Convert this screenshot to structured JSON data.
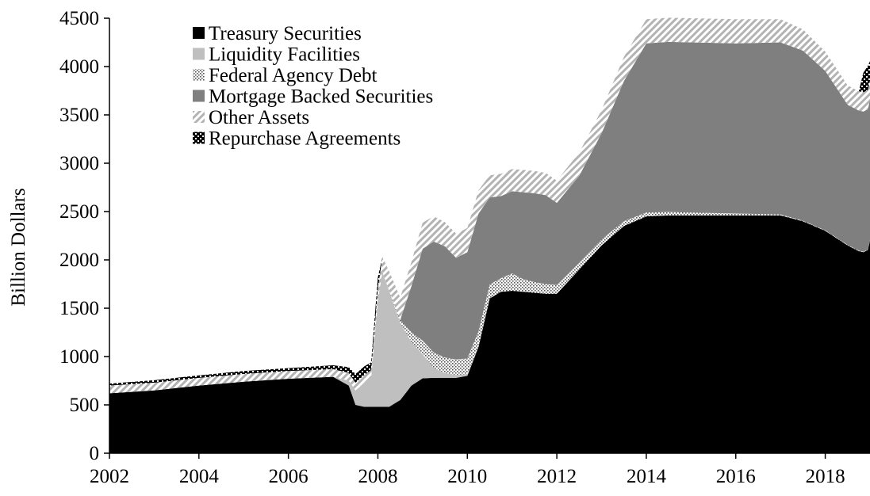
{
  "chart_data": {
    "type": "area",
    "stacked": true,
    "title": "",
    "xlabel": "",
    "ylabel": "Billion Dollars",
    "xlim": [
      2002,
      2019
    ],
    "ylim": [
      0,
      4500
    ],
    "x_ticks": [
      2002,
      2004,
      2006,
      2008,
      2010,
      2012,
      2014,
      2016,
      2018
    ],
    "y_ticks": [
      0,
      500,
      1000,
      1500,
      2000,
      2500,
      3000,
      3500,
      4000,
      4500
    ],
    "grid": false,
    "legend_position": "top-left",
    "x": [
      2002.0,
      2003.0,
      2004.0,
      2005.0,
      2006.0,
      2007.0,
      2007.35,
      2007.5,
      2007.7,
      2007.85,
      2008.0,
      2008.1,
      2008.25,
      2008.5,
      2008.75,
      2009.0,
      2009.25,
      2009.5,
      2009.75,
      2010.0,
      2010.25,
      2010.5,
      2010.75,
      2011.0,
      2011.25,
      2011.5,
      2011.75,
      2012.0,
      2012.5,
      2013.0,
      2013.5,
      2014.0,
      2014.5,
      2015.0,
      2016.0,
      2017.0,
      2017.5,
      2018.0,
      2018.5,
      2018.75,
      2018.85,
      2018.95,
      2019.0
    ],
    "series": [
      {
        "name": "Treasury Securities",
        "pattern": "solid-black",
        "color": "#000000",
        "values": [
          620,
          650,
          700,
          740,
          770,
          790,
          700,
          500,
          480,
          480,
          480,
          480,
          480,
          550,
          700,
          775,
          780,
          780,
          780,
          800,
          1100,
          1600,
          1670,
          1680,
          1670,
          1660,
          1650,
          1650,
          1900,
          2150,
          2350,
          2450,
          2460,
          2460,
          2460,
          2460,
          2400,
          2300,
          2150,
          2090,
          2080,
          2100,
          2200
        ]
      },
      {
        "name": "Liquidity Facilities",
        "pattern": "solid-light-gray",
        "color": "#bfbfbf",
        "values": [
          0,
          0,
          0,
          0,
          0,
          0,
          50,
          150,
          250,
          300,
          1100,
          1400,
          1200,
          800,
          450,
          250,
          100,
          50,
          30,
          20,
          10,
          5,
          0,
          0,
          0,
          0,
          0,
          0,
          0,
          0,
          0,
          0,
          0,
          0,
          0,
          0,
          0,
          0,
          0,
          0,
          0,
          0,
          0
        ]
      },
      {
        "name": "Federal Agency Debt",
        "pattern": "fine-dots",
        "color": "#8c8c8c",
        "values": [
          0,
          0,
          0,
          0,
          0,
          0,
          0,
          0,
          0,
          0,
          0,
          0,
          5,
          30,
          100,
          140,
          160,
          160,
          160,
          160,
          150,
          140,
          140,
          180,
          130,
          110,
          100,
          90,
          70,
          60,
          50,
          40,
          35,
          30,
          20,
          10,
          5,
          5,
          5,
          5,
          5,
          5,
          5
        ]
      },
      {
        "name": "Mortgage Backed Securities",
        "pattern": "solid-dark-gray",
        "color": "#7f7f7f",
        "values": [
          0,
          0,
          0,
          0,
          0,
          0,
          0,
          0,
          0,
          0,
          0,
          0,
          0,
          0,
          480,
          950,
          1150,
          1150,
          1050,
          1100,
          1220,
          900,
          850,
          850,
          900,
          920,
          920,
          850,
          900,
          1100,
          1450,
          1750,
          1760,
          1760,
          1760,
          1780,
          1760,
          1650,
          1450,
          1450,
          1450,
          1450,
          1450
        ]
      },
      {
        "name": "Other Assets",
        "pattern": "diagonal-hatch",
        "color": "#bfbfbf",
        "values": [
          80,
          80,
          80,
          80,
          80,
          80,
          80,
          80,
          80,
          80,
          120,
          150,
          200,
          230,
          250,
          270,
          260,
          250,
          250,
          250,
          240,
          230,
          230,
          230,
          230,
          230,
          230,
          230,
          240,
          240,
          250,
          250,
          250,
          250,
          250,
          240,
          220,
          200,
          200,
          200,
          200,
          200,
          200
        ]
      },
      {
        "name": "Repurchase Agreements",
        "pattern": "black-checker",
        "color": "#000000",
        "values": [
          20,
          25,
          25,
          30,
          30,
          40,
          60,
          90,
          90,
          80,
          120,
          0,
          0,
          0,
          0,
          0,
          0,
          0,
          0,
          0,
          0,
          0,
          0,
          0,
          0,
          0,
          0,
          0,
          0,
          0,
          0,
          0,
          0,
          0,
          0,
          0,
          0,
          0,
          0,
          0,
          200,
          250,
          200
        ]
      }
    ]
  }
}
